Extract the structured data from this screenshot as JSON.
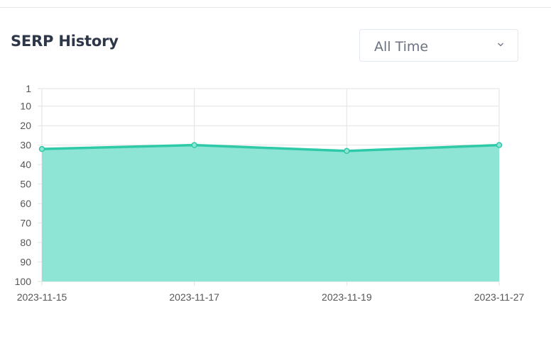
{
  "header": {
    "title": "SERP History"
  },
  "range_select": {
    "value": "All Time",
    "icon": "chevron-down-icon"
  },
  "colors": {
    "line": "#2ecaa7",
    "fill": "#8ee5d5",
    "grid": "#e2e2e2",
    "title": "#2d3748"
  },
  "chart_data": {
    "type": "area",
    "title": "",
    "xlabel": "",
    "ylabel": "",
    "y_reversed": true,
    "ylim": [
      1,
      100
    ],
    "yticks": [
      1,
      10,
      20,
      30,
      40,
      50,
      60,
      70,
      80,
      90,
      100
    ],
    "x": [
      "2023-11-15",
      "2023-11-17",
      "2023-11-19",
      "2023-11-27"
    ],
    "series": [
      {
        "values": [
          32,
          30,
          33,
          30
        ]
      }
    ],
    "grid": true,
    "legend": "none"
  }
}
